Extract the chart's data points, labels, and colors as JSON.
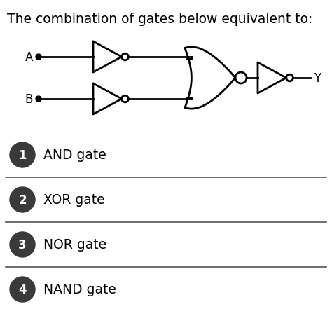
{
  "title": "The combination of gates below equivalent to:",
  "title_fontsize": 13.5,
  "bg_color": "#ffffff",
  "text_color": "#000000",
  "options": [
    {
      "num": "1",
      "text": "AND gate"
    },
    {
      "num": "2",
      "text": "XOR gate"
    },
    {
      "num": "3",
      "text": "NOR gate"
    },
    {
      "num": "4",
      "text": "NAND gate"
    }
  ],
  "circle_color": "#3a3a3a",
  "circle_text_color": "#ffffff",
  "line_color": "#000000",
  "sep_color": "#555555",
  "gate_lw": 2.0,
  "input_A_label": "A",
  "input_B_label": "B",
  "output_label": "Y",
  "figsize": [
    4.74,
    4.52
  ],
  "dpi": 100
}
